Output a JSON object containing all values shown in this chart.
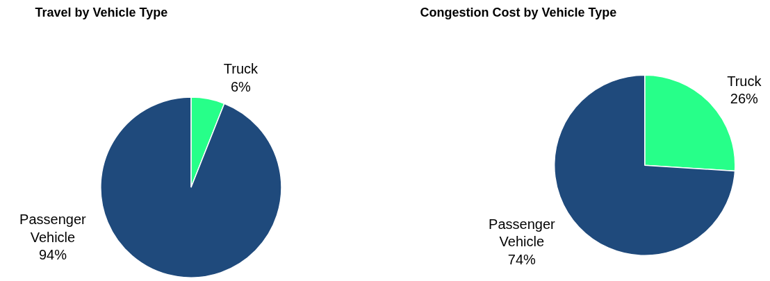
{
  "chart_data": [
    {
      "type": "pie",
      "title": "Travel by Vehicle Type",
      "categories": [
        "Truck",
        "Passenger Vehicle"
      ],
      "values": [
        6,
        94
      ],
      "value_labels": [
        "6%",
        "94%"
      ],
      "colors": [
        "#27ff89",
        "#1f4a7c"
      ]
    },
    {
      "type": "pie",
      "title": "Congestion Cost by Vehicle Type",
      "categories": [
        "Truck",
        "Passenger Vehicle"
      ],
      "values": [
        26,
        74
      ],
      "value_labels": [
        "26%",
        "74%"
      ],
      "colors": [
        "#27ff89",
        "#1f4a7c"
      ]
    }
  ]
}
